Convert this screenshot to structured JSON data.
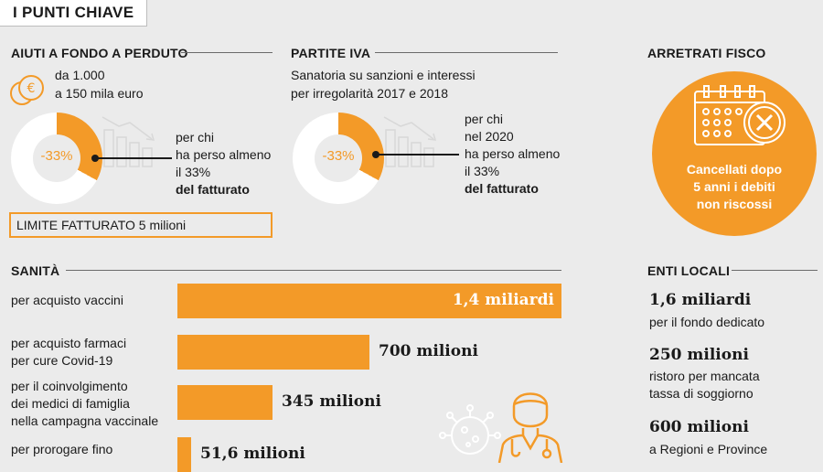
{
  "header": {
    "title": "I PUNTI CHIAVE"
  },
  "aiuti": {
    "section": "AIUTI A FONDO A PERDUTO",
    "range_line1": "da 1.000",
    "range_line2": "a 150 mila euro",
    "donut_label": "-33%",
    "donut_fraction": 0.33,
    "note": [
      "per chi",
      "ha perso almeno",
      "il 33%",
      "del fatturato"
    ],
    "limit": "LIMITE FATTURATO 5 milioni"
  },
  "partite": {
    "section": "PARTITE IVA",
    "desc_line1": "Sanatoria su sanzioni e interessi",
    "desc_line2": "per irregolarità 2017 e 2018",
    "donut_label": "-33%",
    "donut_fraction": 0.33,
    "note": [
      "per chi",
      "nel 2020",
      "ha perso almeno",
      "il 33%",
      "del fatturato"
    ]
  },
  "arretrati": {
    "section": "ARRETRATI FISCO",
    "text": [
      "Cancellati dopo",
      "5 anni i debiti",
      "non riscossi"
    ]
  },
  "sanita": {
    "section": "SANITÀ",
    "items": [
      {
        "label": [
          "per acquisto vaccini"
        ],
        "value": "1,4 miliardi",
        "amount": 1400
      },
      {
        "label": [
          "per acquisto farmaci",
          "per cure Covid-19"
        ],
        "value": "700 milioni",
        "amount": 700
      },
      {
        "label": [
          "per il coinvolgimento",
          "dei medici di famiglia",
          "nella campagna vaccinale"
        ],
        "value": "345 milioni",
        "amount": 345
      },
      {
        "label": [
          "per prorogare fino"
        ],
        "value": "51,6 milioni",
        "amount": 51.6
      }
    ]
  },
  "enti": {
    "section": "ENTI LOCALI",
    "items": [
      {
        "value": "1,6 miliardi",
        "desc": [
          "per il fondo dedicato"
        ]
      },
      {
        "value": "250 milioni",
        "desc": [
          "ristoro per mancata",
          "tassa di soggiorno"
        ]
      },
      {
        "value": "600 milioni",
        "desc": [
          "a Regioni e Province"
        ]
      }
    ]
  },
  "colors": {
    "accent": "#f39a28",
    "background": "#ebebeb",
    "donut_bg": "#ffffff"
  }
}
